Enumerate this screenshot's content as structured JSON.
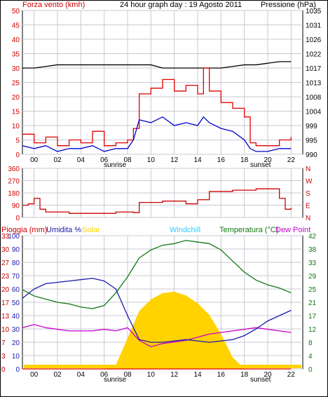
{
  "header": {
    "title": "24 hour graph day : 19 Agosto 2011",
    "left_label": "Forza vento (kmh)",
    "right_label": "Pressione (hPa)"
  },
  "colors": {
    "border": "#000000",
    "axis_text": "#cc0000",
    "right_axis_text": "#000000",
    "grid": "#c8c8d4",
    "wind_gust": "#e00000",
    "wind_avg": "#0000cc",
    "pressure": "#000000",
    "direction": "#cc0000",
    "rain": "#e00000",
    "humidity": "#1a1aaa",
    "solar": "#ffd200",
    "windchill": "#33ccff",
    "temperature": "#117711",
    "dewpoint": "#cc00cc"
  },
  "x_axis": {
    "hours": [
      "00",
      "02",
      "04",
      "06",
      "08",
      "10",
      "12",
      "14",
      "16",
      "18",
      "20",
      "22"
    ],
    "sunrise_label": "sunrise",
    "sunset_label": "sunset"
  },
  "chart_data": [
    {
      "type": "line",
      "title": "24 hour graph day : 19 Agosto 2011",
      "ylabel": "Forza vento (kmh)",
      "y2label": "Pressione (hPa)",
      "ylim": [
        0,
        50
      ],
      "y_ticks": [
        0,
        5,
        10,
        15,
        20,
        25,
        30,
        35,
        40,
        45,
        50
      ],
      "y2lim": [
        990,
        1035
      ],
      "y2_ticks": [
        990,
        995,
        999,
        1004,
        1008,
        1013,
        1017,
        1022,
        1026,
        1031,
        1035
      ],
      "x": [
        0,
        1,
        2,
        3,
        4,
        5,
        6,
        7,
        8,
        9,
        9.5,
        10,
        11,
        12,
        13,
        14,
        15,
        15.5,
        16,
        17,
        18,
        19,
        19.5,
        20,
        21,
        22,
        23
      ],
      "series": [
        {
          "name": "gust",
          "values": [
            7,
            4,
            6,
            3,
            5,
            4,
            8,
            3,
            4,
            5,
            9,
            21,
            23,
            26,
            22,
            24,
            21,
            30,
            22,
            18,
            16,
            13,
            4,
            3,
            3,
            5,
            6
          ]
        },
        {
          "name": "avg",
          "values": [
            3,
            2,
            3,
            1,
            2,
            2,
            3,
            1,
            2,
            2,
            5,
            12,
            11,
            13,
            10,
            11,
            10,
            13,
            11,
            9,
            8,
            5,
            2,
            1,
            1,
            2,
            2
          ]
        },
        {
          "name": "pressure",
          "values": [
            1017,
            1017,
            1017.5,
            1018,
            1018,
            1018,
            1018,
            1018,
            1018,
            1018,
            1018,
            1018,
            1018,
            1017,
            1017,
            1017,
            1017,
            1017,
            1017,
            1017,
            1017.5,
            1018,
            1018,
            1018,
            1018.5,
            1019,
            1019
          ]
        }
      ]
    },
    {
      "type": "line",
      "ylabels_left": [
        "360",
        "270",
        "180",
        "90",
        "0"
      ],
      "ylabels_right": [
        "N",
        "W",
        "S",
        "E",
        "N"
      ],
      "ylim": [
        0,
        360
      ],
      "x": [
        0,
        0.5,
        1,
        1.5,
        2,
        4,
        6,
        8,
        9.5,
        10,
        12,
        14,
        15,
        16,
        18,
        20,
        22,
        22.5,
        23
      ],
      "series": [
        {
          "name": "direction",
          "values": [
            90,
            100,
            140,
            60,
            40,
            30,
            30,
            40,
            35,
            110,
            120,
            100,
            130,
            190,
            200,
            210,
            140,
            60,
            70
          ]
        }
      ]
    },
    {
      "type": "line",
      "legend": [
        "Pioggia (mm)",
        "Umidita %",
        "Solar",
        "Windchill",
        "Temperatura (°C)",
        "Dew Point"
      ],
      "y_left_rain": [
        "0",
        "3",
        "7",
        "10",
        "13",
        "17",
        "20",
        "23",
        "27",
        "30",
        "33"
      ],
      "y_left_hum": [
        "0",
        "10",
        "20",
        "30",
        "40",
        "50",
        "60",
        "70",
        "80",
        "90",
        "100"
      ],
      "y_right_temp": [
        "0",
        "4",
        "8",
        "12",
        "17",
        "21",
        "25",
        "29",
        "33",
        "38",
        "42"
      ],
      "ylim_hum": [
        0,
        100
      ],
      "ylim_temp": [
        0,
        42
      ],
      "x": [
        0,
        1,
        2,
        3,
        4,
        5,
        6,
        7,
        8,
        9,
        10,
        11,
        12,
        13,
        14,
        15,
        16,
        17,
        18,
        19,
        20,
        21,
        22,
        23
      ],
      "series": [
        {
          "name": "Umidita %",
          "values": [
            53,
            60,
            64,
            65,
            66,
            67,
            68,
            66,
            60,
            40,
            22,
            20,
            20,
            21,
            22,
            21,
            20,
            21,
            22,
            25,
            30,
            36,
            40,
            44
          ]
        },
        {
          "name": "Temperatura (°C)",
          "values": [
            25,
            23,
            22,
            21,
            20.5,
            19.5,
            19,
            20,
            24,
            29,
            35,
            37.5,
            39,
            39.5,
            40.5,
            40,
            39.5,
            37.5,
            34,
            30.5,
            28,
            26.5,
            25.5,
            24
          ]
        },
        {
          "name": "Dew Point",
          "values": [
            13,
            14,
            13,
            12.5,
            12,
            12,
            12,
            12.5,
            12,
            13,
            9,
            7,
            8,
            8.5,
            9,
            10,
            11,
            11.5,
            12,
            12.5,
            13,
            12.5,
            12,
            11.5
          ]
        },
        {
          "name": "Solar",
          "values": [
            0,
            0,
            0,
            0,
            0,
            0,
            0,
            0,
            5,
            40,
            75,
            90,
            98,
            100,
            95,
            85,
            70,
            45,
            15,
            0,
            0,
            0,
            0,
            0
          ]
        },
        {
          "name": "Pioggia (mm)",
          "values": [
            0,
            0,
            0,
            0,
            0,
            0,
            0,
            0,
            0,
            0,
            0,
            0,
            0,
            0,
            0,
            0,
            0,
            0,
            0,
            0,
            0,
            0,
            0,
            0
          ]
        }
      ]
    }
  ]
}
